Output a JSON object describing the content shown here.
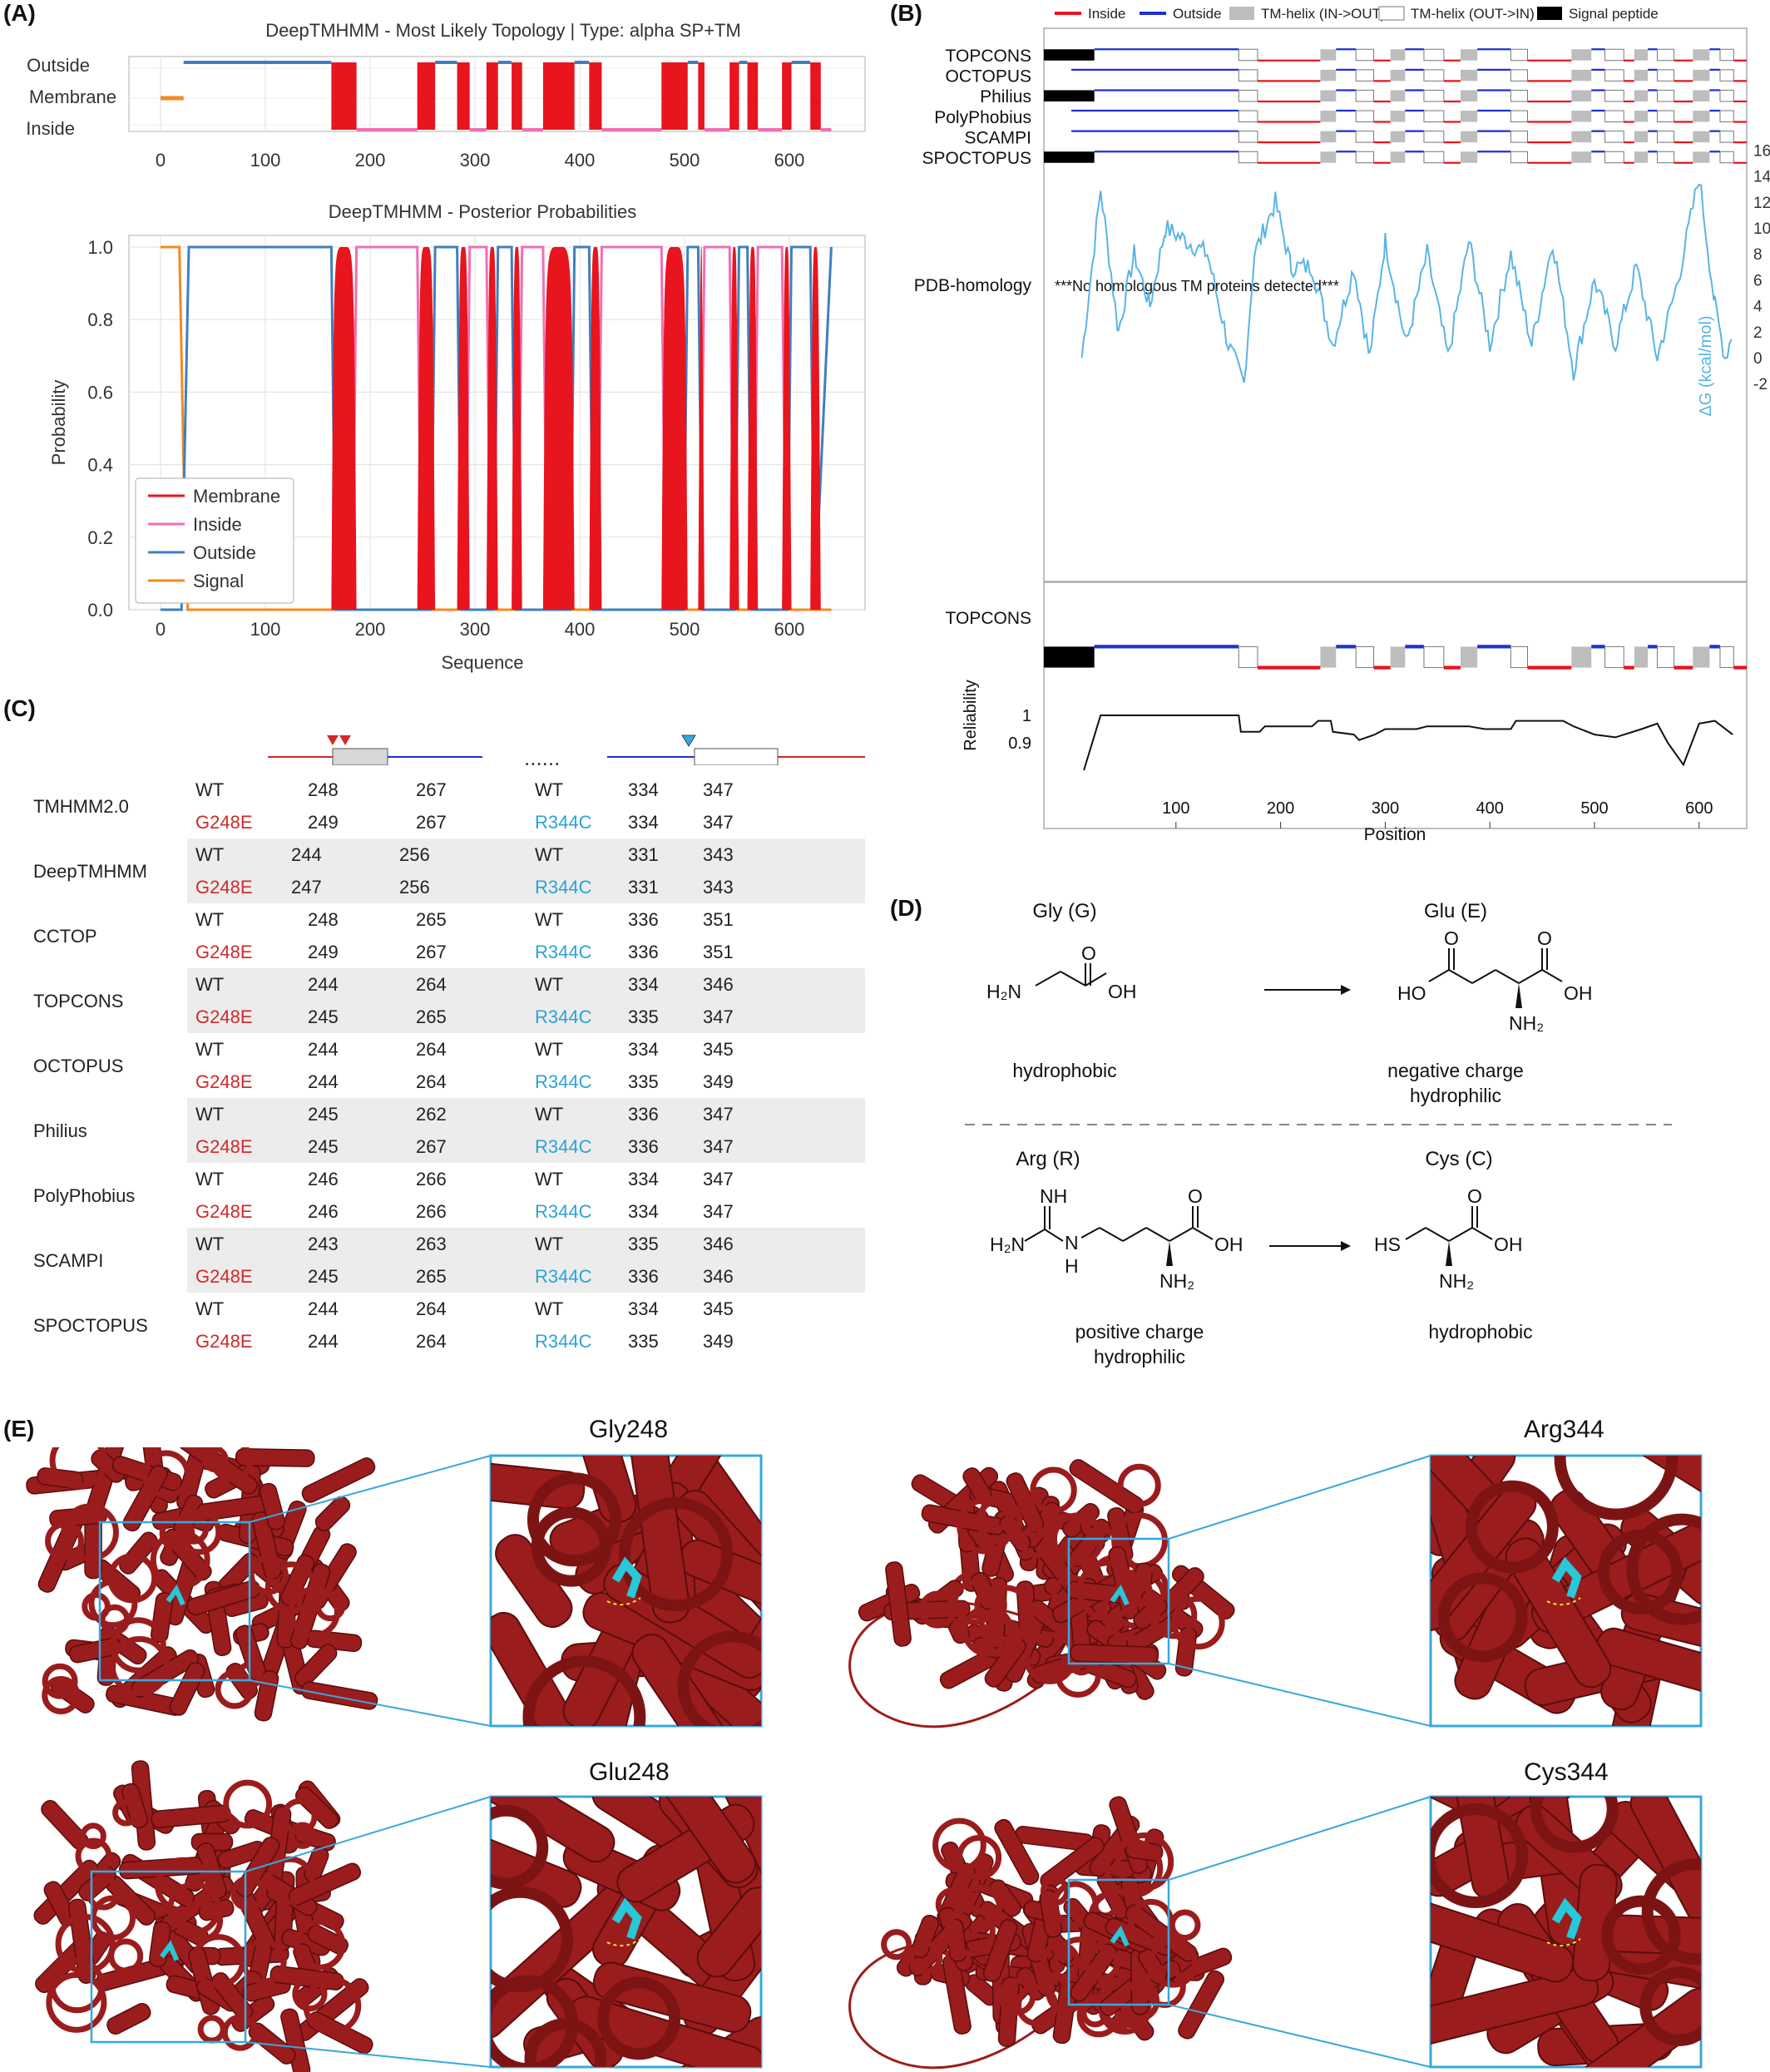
{
  "panels": {
    "A": "(A)",
    "B": "(B)",
    "C": "(C)",
    "D": "(D)",
    "E": "(E)"
  },
  "panelA": {
    "topology": {
      "title": "DeepTMHMM - Most Likely Topology | Type: alpha SP+TM",
      "ylabels": [
        "Outside",
        "Membrane",
        "Inside"
      ],
      "xticks": [
        "0",
        "100",
        "200",
        "300",
        "400",
        "500",
        "600"
      ]
    },
    "posterior": {
      "title": "DeepTMHMM - Posterior Probabilities",
      "ylabel": "Probability",
      "xlabel": "Sequence",
      "yticks": [
        "0.0",
        "0.2",
        "0.4",
        "0.6",
        "0.8",
        "1.0"
      ],
      "xticks": [
        "0",
        "100",
        "200",
        "300",
        "400",
        "500",
        "600"
      ],
      "legend": [
        "Membrane",
        "Inside",
        "Outside",
        "Signal"
      ]
    },
    "colors": {
      "membrane": "#e8141e",
      "inside": "#f06fb4",
      "outside": "#3f7fbf",
      "signal": "#f5891f"
    }
  },
  "panelB": {
    "legend": [
      "Inside",
      "Outside",
      "TM-helix (IN->OUT)",
      "TM-helix (OUT->IN)",
      "Signal peptide"
    ],
    "tools": [
      "TOPCONS",
      "OCTOPUS",
      "Philius",
      "PolyPhobius",
      "SCAMPI",
      "SPOCTOPUS"
    ],
    "pdb_label": "PDB-homology",
    "pdb_text": "***No homologous TM proteins detected***",
    "dg_label": "ΔG (kcal/mol)",
    "dg_ticks": [
      "16",
      "14",
      "12",
      "10",
      "8",
      "6",
      "4",
      "2",
      "0",
      "-2"
    ],
    "topcons_label": "TOPCONS",
    "reliability_label": "Reliability",
    "rel_ticks": [
      "1",
      "0.9"
    ],
    "xticks": [
      "100",
      "200",
      "300",
      "400",
      "500",
      "600"
    ],
    "xlabel": "Position",
    "colors": {
      "inside": "#e8141e",
      "outside": "#1f2fd6",
      "dg": "#5ab4e5"
    }
  },
  "panelC": {
    "dots": "......",
    "rows": [
      {
        "tool": "TMHMM2.0",
        "shade": false,
        "wt": [
          "WT",
          "248",
          "267",
          "WT",
          "334",
          "347"
        ],
        "mut": [
          "G248E",
          "249",
          "267",
          "R344C",
          "334",
          "347"
        ]
      },
      {
        "tool": "DeepTMHMM",
        "shade": true,
        "wt": [
          "WT",
          "244",
          "256",
          "WT",
          "331",
          "343"
        ],
        "mut": [
          "G248E",
          "247",
          "256",
          "R344C",
          "331",
          "343"
        ]
      },
      {
        "tool": "CCTOP",
        "shade": false,
        "wt": [
          "WT",
          "248",
          "265",
          "WT",
          "336",
          "351"
        ],
        "mut": [
          "G248E",
          "249",
          "267",
          "R344C",
          "336",
          "351"
        ]
      },
      {
        "tool": "TOPCONS",
        "shade": true,
        "wt": [
          "WT",
          "244",
          "264",
          "WT",
          "334",
          "346"
        ],
        "mut": [
          "G248E",
          "245",
          "265",
          "R344C",
          "335",
          "347"
        ]
      },
      {
        "tool": "OCTOPUS",
        "shade": false,
        "wt": [
          "WT",
          "244",
          "264",
          "WT",
          "334",
          "345"
        ],
        "mut": [
          "G248E",
          "244",
          "264",
          "R344C",
          "335",
          "349"
        ]
      },
      {
        "tool": "Philius",
        "shade": true,
        "wt": [
          "WT",
          "245",
          "262",
          "WT",
          "336",
          "347"
        ],
        "mut": [
          "G248E",
          "245",
          "267",
          "R344C",
          "336",
          "347"
        ]
      },
      {
        "tool": "PolyPhobius",
        "shade": false,
        "wt": [
          "WT",
          "246",
          "266",
          "WT",
          "334",
          "347"
        ],
        "mut": [
          "G248E",
          "246",
          "266",
          "R344C",
          "334",
          "347"
        ]
      },
      {
        "tool": "SCAMPI",
        "shade": true,
        "wt": [
          "WT",
          "243",
          "263",
          "WT",
          "335",
          "346"
        ],
        "mut": [
          "G248E",
          "245",
          "265",
          "R344C",
          "336",
          "346"
        ]
      },
      {
        "tool": "SPOCTOPUS",
        "shade": false,
        "wt": [
          "WT",
          "244",
          "264",
          "WT",
          "334",
          "345"
        ],
        "mut": [
          "G248E",
          "244",
          "264",
          "R344C",
          "335",
          "349"
        ]
      }
    ]
  },
  "panelD": {
    "gly": {
      "name": "Gly (G)",
      "desc": "hydrophobic"
    },
    "glu": {
      "name": "Glu (E)",
      "desc1": "negative charge",
      "desc2": "hydrophilic"
    },
    "arg": {
      "name": "Arg (R)",
      "desc1": "positive charge",
      "desc2": "hydrophilic"
    },
    "cys": {
      "name": "Cys (C)",
      "desc": "hydrophobic"
    },
    "atoms": {
      "h2n": "H₂N",
      "oh": "OH",
      "ho": "HO",
      "o": "O",
      "nh2": "NH₂",
      "nh": "NH",
      "h": "H",
      "n": "N",
      "hs": "HS"
    }
  },
  "panelE": {
    "titles": [
      "Gly248",
      "Arg344",
      "Glu248",
      "Cys344"
    ],
    "colors": {
      "protein": "#9b1c1c",
      "box": "#38a8dd",
      "residue": "#27c8d8"
    }
  }
}
